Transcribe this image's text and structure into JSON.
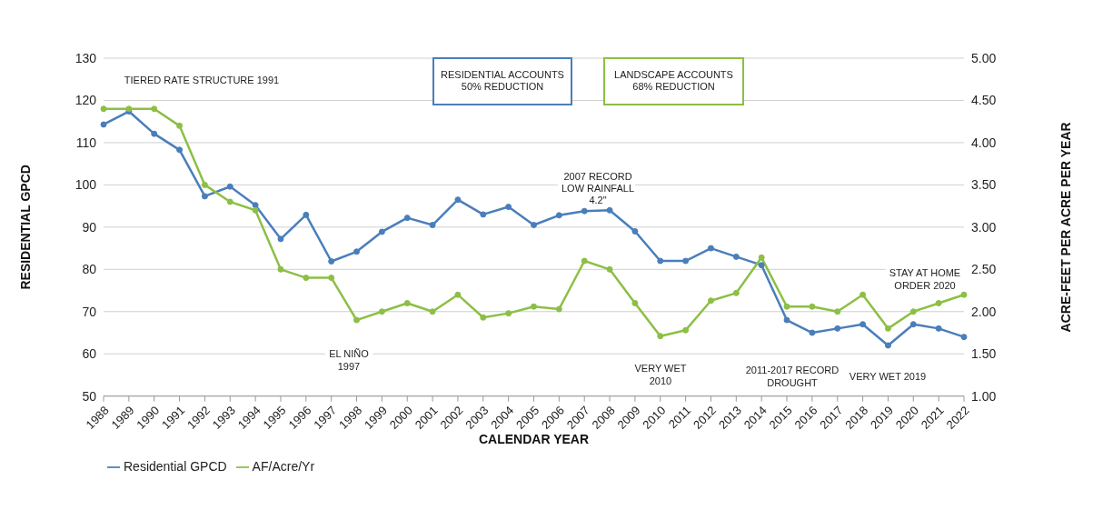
{
  "chart_data": {
    "type": "line",
    "xlabel": "CALENDAR YEAR",
    "ylabel": "RESIDENTIAL GPCD",
    "y2label": "ACRE-FEET PER ACRE PER YEAR",
    "categories": [
      "1988",
      "1989",
      "1990",
      "1991",
      "1992",
      "1993",
      "1994",
      "1995",
      "1996",
      "1997",
      "1998",
      "1999",
      "2000",
      "2001",
      "2002",
      "2003",
      "2004",
      "2005",
      "2006",
      "2007",
      "2008",
      "2009",
      "2010",
      "2011",
      "2012",
      "2013",
      "2014",
      "2015",
      "2016",
      "2017",
      "2018",
      "2019",
      "2020",
      "2021",
      "2022"
    ],
    "series": [
      {
        "name": "Residential GPCD",
        "color": "#4a7ebb",
        "values": [
          114.3,
          117.4,
          112.1,
          108.3,
          97.3,
          99.6,
          95.2,
          87.2,
          92.9,
          81.9,
          84.2,
          88.9,
          92.2,
          90.5,
          96.5,
          93.0,
          94.8,
          90.5,
          92.8,
          93.8,
          94.0,
          89.0,
          82.0,
          82.0,
          85.0,
          83.0,
          81.0,
          68.0,
          65.0,
          66.0,
          67.0,
          62.0,
          67.0,
          66.0,
          64.0
        ]
      },
      {
        "name": "AF/Acre/Yr",
        "color": "#8cbf44",
        "axis": "y2",
        "values": [
          4.4,
          4.4,
          4.4,
          4.2,
          3.5,
          3.3,
          3.2,
          2.5,
          2.4,
          2.4,
          1.9,
          2.0,
          2.1,
          2.0,
          2.2,
          1.93,
          1.98,
          2.06,
          2.03,
          2.6,
          2.5,
          2.1,
          1.71,
          1.78,
          2.13,
          2.22,
          2.64,
          2.06,
          2.06,
          2.0,
          2.2,
          1.8,
          2.0,
          2.1,
          2.2
        ]
      }
    ],
    "ylim": [
      50,
      130
    ],
    "yticks": [
      50,
      60,
      70,
      80,
      90,
      100,
      110,
      120,
      130
    ],
    "y2lim": [
      1,
      5
    ],
    "y2ticks": [
      {
        "value": 1,
        "label": "1.00"
      },
      {
        "value": 1.5,
        "label": "1.50"
      },
      {
        "value": 2,
        "label": "2.00"
      },
      {
        "value": 2.5,
        "label": "2.50"
      },
      {
        "value": 3,
        "label": "3.00"
      },
      {
        "value": 3.5,
        "label": "3.50"
      },
      {
        "value": 4,
        "label": "4.00"
      },
      {
        "value": 4.5,
        "label": "4.50"
      },
      {
        "value": 5,
        "label": "5.00"
      }
    ],
    "annotations": [
      "RESIDENTIAL ACCOUNTS\n50% REDUCTION",
      "LANDSCAPE ACCOUNTS\n68% REDUCTION",
      "TIERED RATE STRUCTURE 1991",
      "EL NIÑO\n1997",
      "2007 RECORD\nLOW RAINFALL\n4.2\"",
      "VERY WET\n2010",
      "2011-2017 RECORD\nDROUGHT",
      "VERY WET 2019",
      "STAY AT HOME\nORDER 2020"
    ],
    "grid": "y",
    "legend": "bottom left",
    "marker": "circle",
    "line_style": "solid"
  }
}
